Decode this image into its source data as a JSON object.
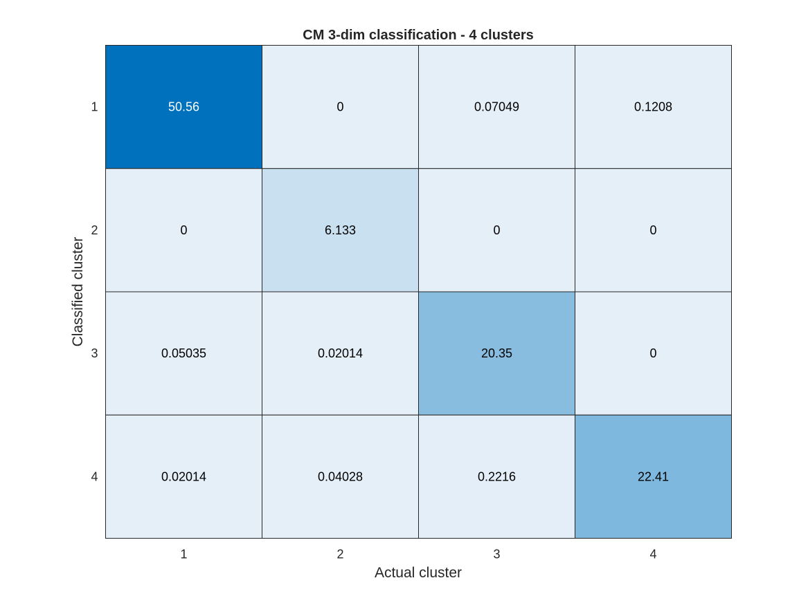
{
  "chart_data": {
    "type": "heatmap",
    "title": "CM 3-dim classification - 4 clusters",
    "xlabel": "Actual cluster",
    "ylabel": "Classified cluster",
    "x_categories": [
      "1",
      "2",
      "3",
      "4"
    ],
    "y_categories": [
      "1",
      "2",
      "3",
      "4"
    ],
    "values": [
      [
        50.56,
        0,
        0.07049,
        0.1208
      ],
      [
        0,
        6.133,
        0,
        0
      ],
      [
        0.05035,
        0.02014,
        20.35,
        0
      ],
      [
        0.02014,
        0.04028,
        0.2216,
        22.41
      ]
    ],
    "value_labels": [
      [
        "50.56",
        "0",
        "0.07049",
        "0.1208"
      ],
      [
        "0",
        "6.133",
        "0",
        "0"
      ],
      [
        "0.05035",
        "0.02014",
        "20.35",
        "0"
      ],
      [
        "0.02014",
        "0.04028",
        "0.2216",
        "22.41"
      ]
    ],
    "colormap": {
      "low": "#e5eff8",
      "high": "#0072bd"
    },
    "text_colors": {
      "dark": "#000000",
      "light": "#ffffff"
    },
    "grid_color": "#262626"
  }
}
